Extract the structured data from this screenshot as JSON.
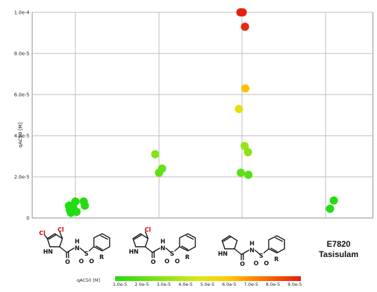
{
  "chart_data": {
    "type": "scatter",
    "ylabel": "qAC50 [M]",
    "ylim": [
      0,
      0.0001
    ],
    "yticks": [
      "0",
      "2.0e-5",
      "4.0e-5",
      "6.0e-5",
      "8.0e-5",
      "1.0e-4"
    ],
    "grid": true,
    "color_scale": {
      "label": "qAC50 [M]",
      "ticks": [
        "1.0e-5",
        "2.0e-5",
        "3.0e-5",
        "4.0e-5",
        "5.0e-5",
        "6.0e-5",
        "7.0e-5",
        "8.0e-5",
        "9.0e-5"
      ],
      "colors": [
        "#22dd11",
        "#d8e81a",
        "#ffcc00",
        "#ff7a00",
        "#e52010"
      ]
    },
    "categories": [
      "dichloro-pyrrole sulfonamide",
      "chloro-pyrrole sulfonamide",
      "pyrrole sulfonamide",
      "E7820 Tasisulam"
    ],
    "points": [
      {
        "group": 0,
        "x": -0.17,
        "y": 6e-06
      },
      {
        "group": 0,
        "x": -0.1,
        "y": 6e-06
      },
      {
        "group": 0,
        "x": 0.0,
        "y": 8e-06
      },
      {
        "group": 0,
        "x": -0.15,
        "y": 4e-06
      },
      {
        "group": 0,
        "x": -0.12,
        "y": 2.5e-06
      },
      {
        "group": 0,
        "x": -0.06,
        "y": 5e-06
      },
      {
        "group": 0,
        "x": 0.03,
        "y": 3e-06
      },
      {
        "group": 0,
        "x": 0.22,
        "y": 8e-06
      },
      {
        "group": 0,
        "x": 0.25,
        "y": 6e-06
      },
      {
        "group": 1,
        "x": -0.1,
        "y": 3.1e-05
      },
      {
        "group": 1,
        "x": 0.0,
        "y": 2.2e-05
      },
      {
        "group": 1,
        "x": 0.08,
        "y": 2.4e-05
      },
      {
        "group": 2,
        "x": -0.08,
        "y": 5.3e-05
      },
      {
        "group": 2,
        "x": -0.03,
        "y": 2.2e-05
      },
      {
        "group": 2,
        "x": -0.04,
        "y": 0.0001
      },
      {
        "group": 2,
        "x": 0.02,
        "y": 0.0001
      },
      {
        "group": 2,
        "x": 0.08,
        "y": 9.3e-05
      },
      {
        "group": 2,
        "x": 0.09,
        "y": 6.3e-05
      },
      {
        "group": 2,
        "x": 0.07,
        "y": 3.5e-05
      },
      {
        "group": 2,
        "x": 0.16,
        "y": 3.2e-05
      },
      {
        "group": 2,
        "x": 0.17,
        "y": 2.1e-05
      },
      {
        "group": 3,
        "x": -0.1,
        "y": 4.5e-06
      },
      {
        "group": 3,
        "x": 0.0,
        "y": 8.5e-06
      }
    ]
  },
  "structures": {
    "s1": {
      "cl_a": "Cl",
      "cl_b": "Cl",
      "nh_ring": "H",
      "n_ring": "N",
      "o_carbonyl": "O",
      "nh_amide": "H",
      "n_amide": "N",
      "s": "S",
      "o1": "O",
      "o2": "O",
      "r": "R"
    },
    "s2": {
      "cl_a": "Cl",
      "nh_ring": "H",
      "n_ring": "N",
      "o_carbonyl": "O",
      "nh_amide": "H",
      "n_amide": "N",
      "s": "S",
      "o1": "O",
      "o2": "O",
      "r": "R"
    },
    "s3": {
      "nh_ring": "H",
      "n_ring": "N",
      "o_carbonyl": "O",
      "nh_amide": "H",
      "n_amide": "N",
      "s": "S",
      "o1": "O",
      "o2": "O",
      "r": "R"
    },
    "s4": {
      "name1": "E7820",
      "name2": "Tasisulam"
    }
  }
}
